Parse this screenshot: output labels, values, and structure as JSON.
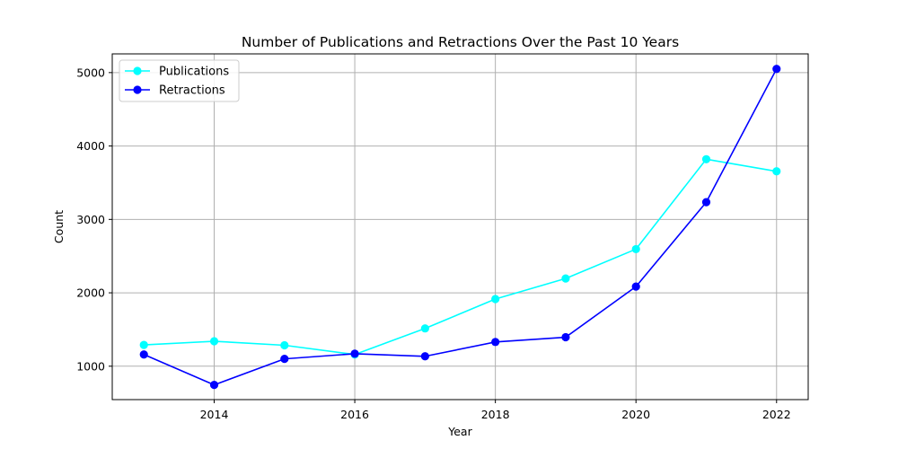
{
  "chart_data": {
    "type": "line",
    "title": "Number of Publications and Retractions Over the Past 10 Years",
    "xlabel": "Year",
    "ylabel": "Count",
    "x": [
      2013,
      2014,
      2015,
      2016,
      2017,
      2018,
      2019,
      2020,
      2021,
      2022
    ],
    "xlim": [
      2012.55,
      2022.45
    ],
    "ylim": [
      545,
      5255
    ],
    "xticks": [
      2014,
      2016,
      2018,
      2020,
      2022
    ],
    "yticks": [
      1000,
      2000,
      3000,
      4000,
      5000
    ],
    "grid": true,
    "legend_position": "top-left",
    "series": [
      {
        "name": "Publications",
        "color": "#00ffff",
        "marker": "circle",
        "values": [
          1290,
          1340,
          1285,
          1160,
          1515,
          1915,
          2195,
          2595,
          3820,
          3655
        ]
      },
      {
        "name": "Retractions",
        "color": "#0000ff",
        "marker": "circle",
        "values": [
          1160,
          745,
          1100,
          1170,
          1135,
          1330,
          1395,
          2085,
          3235,
          5050
        ]
      }
    ]
  }
}
